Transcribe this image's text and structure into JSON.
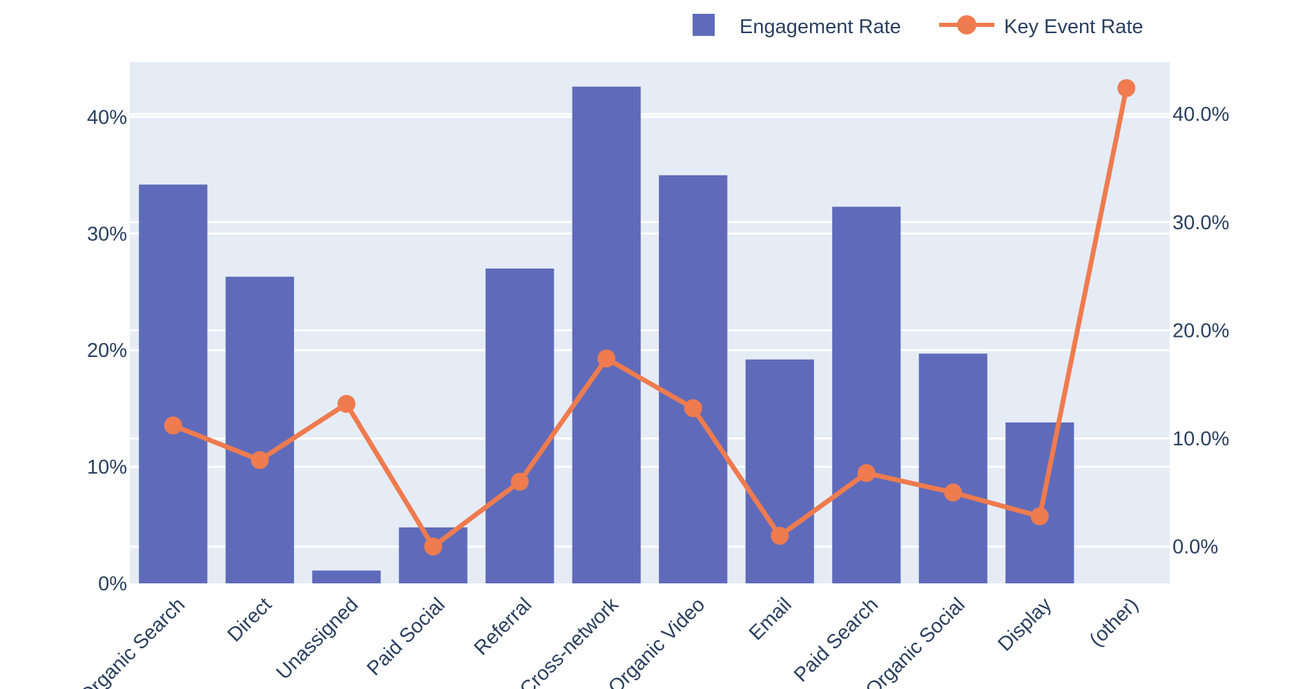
{
  "chart_data": {
    "type": "bar",
    "categories": [
      "Organic Search",
      "Direct",
      "Unassigned",
      "Paid Social",
      "Referral",
      "Cross-network",
      "Organic Video",
      "Email",
      "Paid Search",
      "Organic Social",
      "Display",
      "(other)"
    ],
    "series": [
      {
        "name": "Engagement Rate",
        "type": "bar",
        "axis": "left",
        "color": "#5f6bba",
        "values": [
          0.342,
          0.263,
          0.011,
          0.048,
          0.27,
          0.426,
          0.35,
          0.192,
          0.323,
          0.197,
          0.138,
          0.0
        ]
      },
      {
        "name": "Key Event Rate",
        "type": "line",
        "axis": "right",
        "color": "#ef7b4f",
        "values": [
          0.112,
          0.08,
          0.132,
          0.0,
          0.06,
          0.174,
          0.128,
          0.01,
          0.068,
          0.05,
          0.028,
          0.424
        ]
      }
    ],
    "y_left": {
      "ticks": [
        0,
        0.1,
        0.2,
        0.3,
        0.4
      ],
      "tick_labels": [
        "0%",
        "10%",
        "20%",
        "30%",
        "40%"
      ],
      "range": [
        0,
        0.447
      ]
    },
    "y_right": {
      "ticks": [
        0,
        0.1,
        0.2,
        0.3,
        0.4
      ],
      "tick_labels": [
        "0.0%",
        "10.0%",
        "20.0%",
        "30.0%",
        "40.0%"
      ],
      "range": [
        -0.034,
        0.448
      ]
    },
    "title": "",
    "xlabel": "",
    "ylabel": "",
    "grid": true,
    "legend_position": "top-right",
    "plot_background": "#e5ecf6"
  }
}
